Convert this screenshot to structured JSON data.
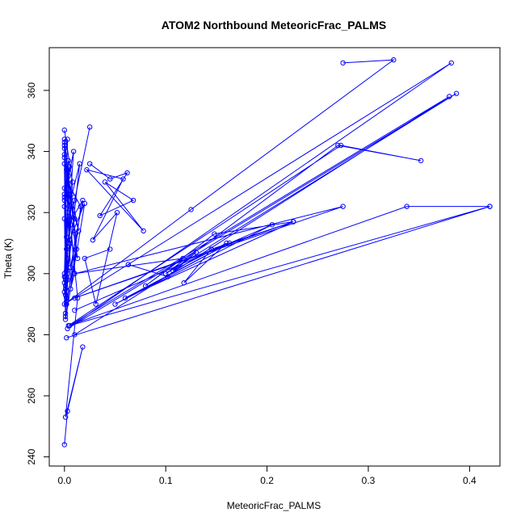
{
  "chart_data": {
    "type": "scatter",
    "title": "ATOM2 Northbound MeteoricFrac_PALMS",
    "xlabel": "MeteoricFrac_PALMS",
    "ylabel": "Theta (K)",
    "xlim": [
      -0.015,
      0.43
    ],
    "ylim": [
      237,
      374
    ],
    "xticks": [
      0.0,
      0.1,
      0.2,
      0.3,
      0.4
    ],
    "xtick_labels": [
      "0.0",
      "0.1",
      "0.2",
      "0.3",
      "0.4"
    ],
    "yticks": [
      240,
      260,
      280,
      300,
      320,
      340,
      360
    ],
    "ytick_labels": [
      "240",
      "260",
      "280",
      "300",
      "320",
      "340",
      "360"
    ],
    "series_color": "#0000ff",
    "mode": "lines+markers",
    "grid": false,
    "series": [
      {
        "x": [
          0.0,
          0.003,
          0.0,
          0.002,
          0.0,
          0.001,
          0.0,
          0.003,
          0.0,
          0.002,
          0.0,
          0.004,
          0.001,
          0.0,
          0.002,
          0.0,
          0.003,
          0.001,
          0.0,
          0.002,
          0.0,
          0.005,
          0.001,
          0.0,
          0.003,
          0.0,
          0.002,
          0.0,
          0.004,
          0.001,
          0.0,
          0.003,
          0.0,
          0.002
        ],
        "y": [
          343,
          298,
          339,
          290,
          336,
          296,
          341,
          300,
          328,
          292,
          326,
          332,
          295,
          324,
          312,
          299,
          310,
          287,
          294,
          308,
          322,
          335,
          298,
          318,
          305,
          342,
          301,
          325,
          337,
          286,
          297,
          344,
          300,
          290
        ]
      },
      {
        "x": [
          0.0,
          0.008,
          0.001,
          0.01,
          0.0,
          0.007,
          0.002,
          0.012,
          0.0,
          0.006,
          0.003,
          0.015,
          0.001,
          0.018,
          0.004,
          0.009,
          0.002,
          0.013,
          0.005,
          0.02,
          0.001,
          0.011,
          0.003,
          0.016,
          0.006,
          0.01,
          0.002,
          0.014,
          0.004
        ],
        "y": [
          347,
          330,
          299,
          318,
          338,
          326,
          291,
          308,
          344,
          302,
          320,
          336,
          293,
          324,
          316,
          340,
          328,
          305,
          311,
          323,
          285,
          313,
          330,
          322,
          295,
          300,
          334,
          314,
          326
        ]
      },
      {
        "x": [
          0.0,
          0.003,
          0.018,
          0.001,
          0.013,
          0.006,
          0.01,
          0.025
        ],
        "y": [
          244,
          255,
          276,
          253,
          292,
          316,
          324,
          348
        ]
      },
      {
        "x": [
          0.025,
          0.045,
          0.062,
          0.035,
          0.068,
          0.04,
          0.078,
          0.022,
          0.058,
          0.028,
          0.052,
          0.031,
          0.02,
          0.045
        ],
        "y": [
          336,
          331,
          333,
          319,
          324,
          330,
          314,
          334,
          331,
          311,
          320,
          290,
          305,
          308
        ]
      },
      {
        "x": [
          0.063,
          0.102,
          0.13,
          0.107,
          0.16,
          0.118,
          0.145,
          0.226,
          0.148,
          0.08,
          0.117,
          0.01,
          0.275,
          0.01,
          0.226,
          0.06,
          0.163,
          0.05,
          0.205,
          0.01
        ],
        "y": [
          303,
          299,
          307,
          301,
          310,
          297,
          308,
          317,
          313,
          296,
          305,
          300,
          322,
          292,
          317,
          292,
          310,
          290,
          316,
          288
        ]
      },
      {
        "x": [
          0.275,
          0.325,
          0.125,
          0.0,
          0.382,
          0.003,
          0.387,
          0.1,
          0.27,
          0.352,
          0.273,
          0.004,
          0.338,
          0.42,
          0.002,
          0.42,
          0.005,
          0.38,
          0.01
        ],
        "y": [
          369,
          370,
          321,
          290,
          369,
          282,
          359,
          300,
          342,
          337,
          342,
          283,
          322,
          322,
          279,
          322,
          283,
          358,
          280
        ]
      }
    ]
  }
}
